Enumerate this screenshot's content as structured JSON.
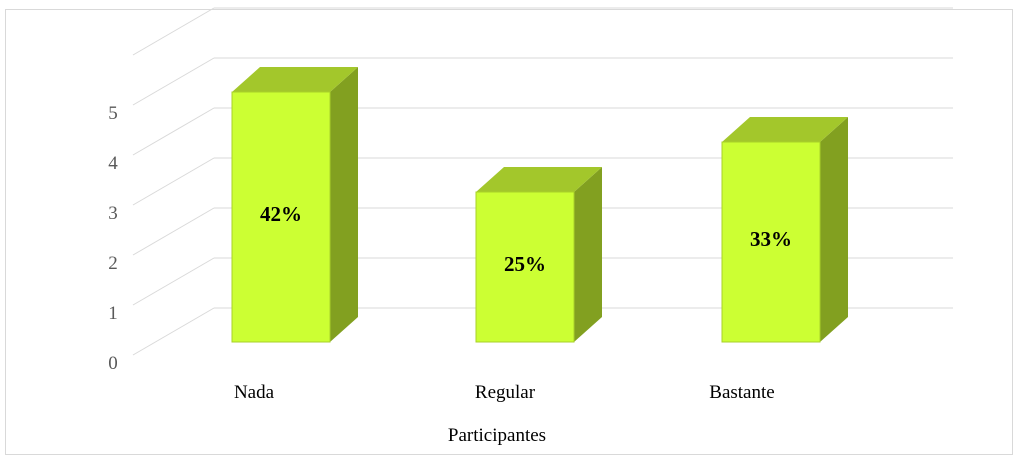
{
  "chart_data": {
    "type": "bar",
    "style": "3d-column",
    "categories": [
      "Nada",
      "Regular",
      "Bastante"
    ],
    "values": [
      5,
      3,
      4
    ],
    "data_labels": [
      "42%",
      "25%",
      "33%"
    ],
    "xlabel": "Participantes",
    "ylabel": "",
    "ylim": [
      0,
      5
    ],
    "yticks": [
      "0",
      "1",
      "2",
      "3",
      "4",
      "5"
    ],
    "grid": true,
    "legend": "none",
    "colors": {
      "bar_front": "#ccff33",
      "bar_top": "#a3c72b",
      "bar_side": "#82a020",
      "bar_outline": "#a8d02a",
      "grid": "#d9d9d9",
      "tick_text": "#595959"
    }
  }
}
